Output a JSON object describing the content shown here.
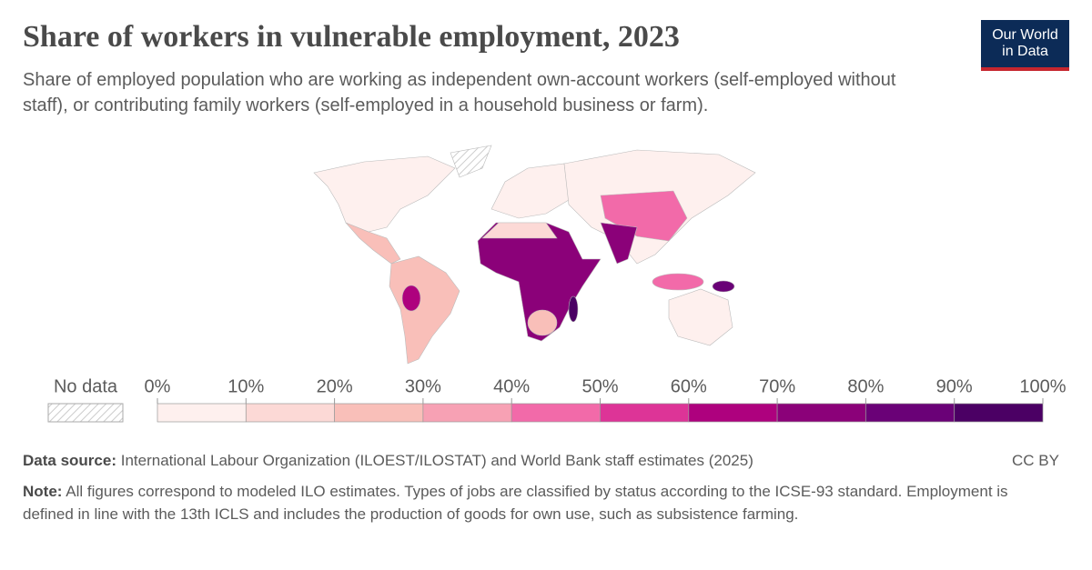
{
  "header": {
    "title": "Share of workers in vulnerable employment, 2023",
    "subtitle": "Share of employed population who are working as independent own-account workers (self-employed without staff), or contributing family workers (self-employed in a household business or farm).",
    "logo": [
      "Our World",
      "in Data"
    ]
  },
  "legend": {
    "no_data": "No data",
    "ticks": [
      {
        "value": 0,
        "label": "0%"
      },
      {
        "value": 10,
        "label": "10%"
      },
      {
        "value": 20,
        "label": "20%"
      },
      {
        "value": 30,
        "label": "30%"
      },
      {
        "value": 40,
        "label": "40%"
      },
      {
        "value": 50,
        "label": "50%"
      },
      {
        "value": 60,
        "label": "60%"
      },
      {
        "value": 70,
        "label": "70%"
      },
      {
        "value": 80,
        "label": "80%"
      },
      {
        "value": 90,
        "label": "90%"
      },
      {
        "value": 100,
        "label": "100%"
      }
    ],
    "colors": [
      "#fef0ee",
      "#fcd9d6",
      "#f9bfb9",
      "#f7a1b4",
      "#f26aa9",
      "#dd3497",
      "#ae017e",
      "#8b0179",
      "#6a0177",
      "#4b0064"
    ]
  },
  "footer": {
    "source_label": "Data source:",
    "source": "International Labour Organization (ILOEST/ILOSTAT) and World Bank staff estimates (2025)",
    "license": "CC BY",
    "note_label": "Note:",
    "note": "All figures correspond to modeled ILO estimates. Types of jobs are classified by status according to the ICSE-93 standard. Employment is defined in line with the 13th ICLS and includes the production of goods for own use, such as subsistence farming."
  }
}
